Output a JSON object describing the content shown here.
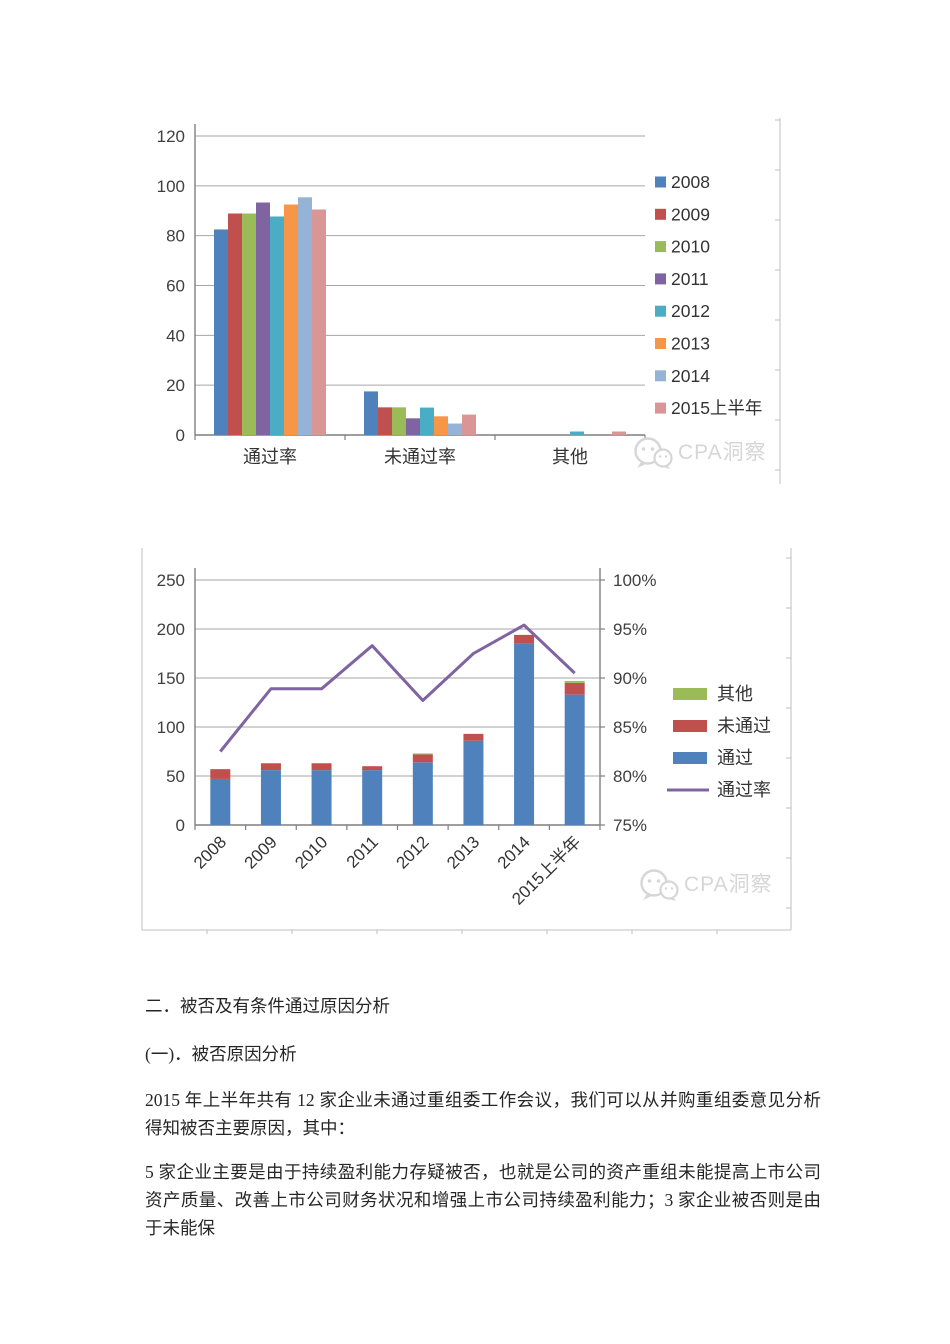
{
  "watermark": {
    "text": "CPA洞察",
    "color": "#d6d6d6"
  },
  "chart_data": [
    {
      "type": "bar",
      "title": "",
      "categories": [
        "通过率",
        "未通过率",
        "其他"
      ],
      "series": [
        {
          "name": "2008",
          "color": "#4F81BD",
          "values": [
            82.5,
            17.5,
            0
          ]
        },
        {
          "name": "2009",
          "color": "#C0504D",
          "values": [
            88.9,
            11.1,
            0
          ]
        },
        {
          "name": "2010",
          "color": "#9BBB59",
          "values": [
            88.9,
            11.1,
            0
          ]
        },
        {
          "name": "2011",
          "color": "#8064A2",
          "values": [
            93.3,
            6.7,
            0
          ]
        },
        {
          "name": "2012",
          "color": "#4BACC6",
          "values": [
            87.7,
            11.0,
            1.4
          ]
        },
        {
          "name": "2013",
          "color": "#F79646",
          "values": [
            92.5,
            7.5,
            0
          ]
        },
        {
          "name": "2014",
          "color": "#95B3D7",
          "values": [
            95.4,
            4.6,
            0
          ]
        },
        {
          "name": "2015上半年",
          "color": "#D99694",
          "values": [
            90.5,
            8.2,
            1.4
          ]
        }
      ],
      "xlabel": "",
      "ylabel": "",
      "ylim": [
        0,
        120
      ],
      "y_ticks": [
        0,
        20,
        40,
        60,
        80,
        100,
        120
      ],
      "grid": true,
      "legend_position": "right"
    },
    {
      "type": "combo-stacked-bar-line",
      "title": "",
      "categories": [
        "2008",
        "2009",
        "2010",
        "2011",
        "2012",
        "2013",
        "2014",
        "2015上半年"
      ],
      "bar_series": [
        {
          "name": "通过",
          "color": "#4F81BD",
          "values": [
            47,
            56,
            56,
            56,
            64,
            86,
            185,
            133
          ]
        },
        {
          "name": "未通过",
          "color": "#C0504D",
          "values": [
            10,
            7,
            7,
            4,
            8,
            7,
            9,
            12
          ]
        },
        {
          "name": "其他",
          "color": "#9BBB59",
          "values": [
            0,
            0,
            0,
            0,
            1,
            0,
            0,
            2
          ]
        }
      ],
      "line_series": {
        "name": "通过率",
        "color": "#8064A2",
        "values": [
          82.5,
          88.9,
          88.9,
          93.3,
          87.7,
          92.5,
          95.4,
          90.5
        ]
      },
      "left_ylim": [
        0,
        250
      ],
      "left_ticks": [
        0,
        50,
        100,
        150,
        200,
        250
      ],
      "right_ylim": [
        75,
        100
      ],
      "right_ticks": [
        "75%",
        "80%",
        "85%",
        "90%",
        "95%",
        "100%"
      ],
      "legend_order": [
        "其他",
        "未通过",
        "通过",
        "通过率"
      ],
      "grid": true,
      "legend_position": "right"
    }
  ],
  "sections": {
    "heading1": "二．被否及有条件通过原因分析",
    "heading2": "(一)．被否原因分析",
    "para1": "2015 年上半年共有 12 家企业未通过重组委工作会议，我们可以从并购重组委意见分析得知被否主要原因，其中：",
    "para2": "5 家企业主要是由于持续盈利能力存疑被否，也就是公司的资产重组未能提高上市公司资产质量、改善上市公司财务状况和增强上市公司持续盈利能力；3 家企业被否则是由于未能保"
  }
}
